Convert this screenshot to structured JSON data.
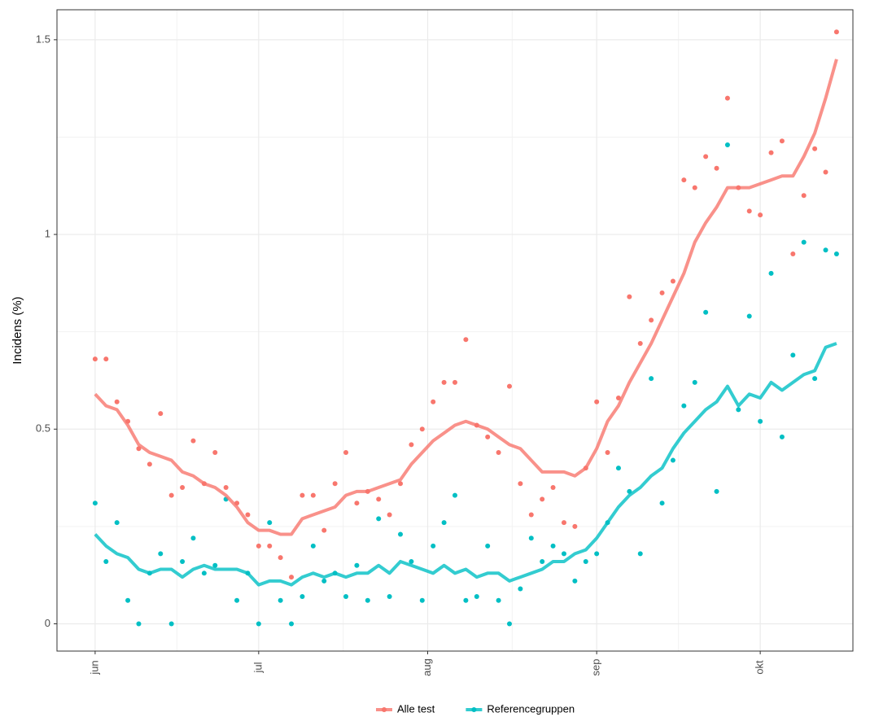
{
  "chart_data": {
    "type": "scatter",
    "y_label": "Incidens (%)",
    "x": [
      0,
      2,
      4,
      6,
      8,
      10,
      12,
      14,
      16,
      18,
      20,
      22,
      24,
      26,
      28,
      30,
      32,
      34,
      36,
      38,
      40,
      42,
      44,
      46,
      48,
      50,
      52,
      54,
      56,
      58,
      60,
      62,
      64,
      66,
      68,
      70,
      72,
      74,
      76,
      78,
      80,
      82,
      84,
      86,
      88,
      90,
      92,
      94,
      96,
      98,
      100,
      102,
      104,
      106,
      108,
      110,
      112,
      114,
      116,
      118,
      120,
      122,
      124,
      126,
      128,
      130,
      132,
      134,
      136
    ],
    "xlim": [
      -7,
      139
    ],
    "xticks": [
      {
        "value": 0,
        "label": "jun"
      },
      {
        "value": 30,
        "label": "jul"
      },
      {
        "value": 61,
        "label": "aug"
      },
      {
        "value": 92,
        "label": "sep"
      },
      {
        "value": 122,
        "label": "okt"
      }
    ],
    "ylim": [
      -0.07,
      1.577
    ],
    "yticks": [
      0,
      0.5,
      1,
      1.5
    ],
    "grid": true,
    "legend": "bottom",
    "series": [
      {
        "name": "Alle test",
        "color": "#F8766D",
        "values": [
          0.68,
          0.68,
          0.57,
          0.52,
          0.45,
          0.41,
          0.54,
          0.33,
          0.35,
          0.47,
          0.36,
          0.44,
          0.35,
          0.31,
          0.28,
          0.2,
          0.2,
          0.17,
          0.12,
          0.33,
          0.33,
          0.24,
          0.36,
          0.44,
          0.31,
          0.34,
          0.32,
          0.28,
          0.36,
          0.46,
          0.5,
          0.57,
          0.62,
          0.62,
          0.73,
          0.51,
          0.48,
          0.44,
          0.61,
          0.36,
          0.28,
          0.32,
          0.35,
          0.26,
          0.25,
          0.4,
          0.57,
          0.44,
          0.58,
          0.84,
          0.72,
          0.78,
          0.85,
          0.88,
          1.14,
          1.12,
          1.2,
          1.17,
          1.35,
          1.12,
          1.06,
          1.05,
          1.21,
          1.24,
          0.95,
          1.1,
          1.22,
          1.16,
          1.52
        ],
        "trend": [
          0.59,
          0.56,
          0.55,
          0.51,
          0.46,
          0.44,
          0.43,
          0.42,
          0.39,
          0.38,
          0.36,
          0.35,
          0.33,
          0.3,
          0.26,
          0.24,
          0.24,
          0.23,
          0.23,
          0.27,
          0.28,
          0.29,
          0.3,
          0.33,
          0.34,
          0.34,
          0.35,
          0.36,
          0.37,
          0.41,
          0.44,
          0.47,
          0.49,
          0.51,
          0.52,
          0.51,
          0.5,
          0.48,
          0.46,
          0.45,
          0.42,
          0.39,
          0.39,
          0.39,
          0.38,
          0.4,
          0.45,
          0.52,
          0.56,
          0.62,
          0.67,
          0.72,
          0.78,
          0.84,
          0.9,
          0.98,
          1.03,
          1.07,
          1.12,
          1.12,
          1.12,
          1.13,
          1.14,
          1.15,
          1.15,
          1.2,
          1.26,
          1.35,
          1.45
        ]
      },
      {
        "name": "Referencegruppen",
        "color": "#00BFC4",
        "values": [
          0.31,
          0.16,
          0.26,
          0.06,
          0.0,
          0.13,
          0.18,
          0.0,
          0.16,
          0.22,
          0.13,
          0.15,
          0.32,
          0.06,
          0.13,
          0.0,
          0.26,
          0.06,
          0.0,
          0.07,
          0.2,
          0.11,
          0.13,
          0.07,
          0.15,
          0.06,
          0.27,
          0.07,
          0.23,
          0.16,
          0.06,
          0.2,
          0.26,
          0.33,
          0.06,
          0.07,
          0.2,
          0.06,
          0.0,
          0.09,
          0.22,
          0.16,
          0.2,
          0.18,
          0.11,
          0.16,
          0.18,
          0.26,
          0.4,
          0.34,
          0.18,
          0.63,
          0.31,
          0.42,
          0.56,
          0.62,
          0.8,
          0.34,
          1.23,
          0.55,
          0.79,
          0.52,
          0.9,
          0.48,
          0.69,
          0.98,
          0.63,
          0.96,
          0.95
        ],
        "trend": [
          0.23,
          0.2,
          0.18,
          0.17,
          0.14,
          0.13,
          0.14,
          0.14,
          0.12,
          0.14,
          0.15,
          0.14,
          0.14,
          0.14,
          0.13,
          0.1,
          0.11,
          0.11,
          0.1,
          0.12,
          0.13,
          0.12,
          0.13,
          0.12,
          0.13,
          0.13,
          0.15,
          0.13,
          0.16,
          0.15,
          0.14,
          0.13,
          0.15,
          0.13,
          0.14,
          0.12,
          0.13,
          0.13,
          0.11,
          0.12,
          0.13,
          0.14,
          0.16,
          0.16,
          0.18,
          0.19,
          0.22,
          0.26,
          0.3,
          0.33,
          0.35,
          0.38,
          0.4,
          0.45,
          0.49,
          0.52,
          0.55,
          0.57,
          0.61,
          0.56,
          0.59,
          0.58,
          0.62,
          0.6,
          0.62,
          0.64,
          0.65,
          0.71,
          0.72
        ]
      }
    ]
  }
}
